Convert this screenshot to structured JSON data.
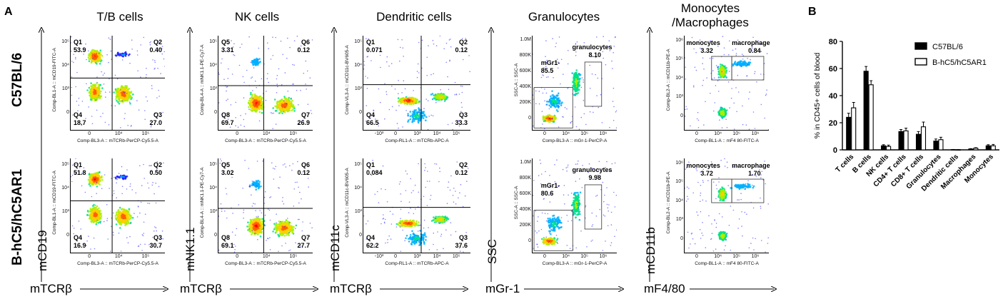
{
  "panel_letters": {
    "a": "A",
    "b": "B"
  },
  "column_titles": [
    "T/B cells",
    "NK cells",
    "Dendritic cells",
    "Granulocytes",
    "Monocytes\n/Macrophages"
  ],
  "row_labels": [
    "C57BL/6",
    "B-hC5/hC5AR1"
  ],
  "y_markers": [
    "mCD19",
    "mNK1.1",
    "mCD11c",
    "SSC",
    "mCD11b"
  ],
  "x_markers": [
    "mTCRβ",
    "mTCRβ",
    "mTCRβ",
    "mGr-1",
    "mF4/80"
  ],
  "axis_names": {
    "tb": {
      "x": "Comp-BL3-A :: mTCRb-PerCP-Cy5.5-A",
      "y": "Comp-BL1-A :: mCD19-FITC-A"
    },
    "nk": {
      "x": "Comp-BL3-A :: mTCRb-PerCP-Cy5.5-A",
      "y": "Comp-BL4-A :: mNK1.1-PE-Cy7-A"
    },
    "dc": {
      "x": "Comp-RL1-A :: mTCRb-APC-A",
      "y": "Comp-VL3-A :: mCD11c-BV605-A"
    },
    "gr": {
      "x": "Comp-BL3-A :: mGr-1-PerCP-A",
      "y": "SSC-A :: SSC-A"
    },
    "mo": {
      "x": "Comp-BL1-A :: mF4 80-FITC-A",
      "y": "Comp-BL2-A :: mCD11b-PE-A"
    }
  },
  "flow_panels": [
    {
      "id": "tb-c57",
      "quads": [
        {
          "label": "Q1",
          "value": "53.9"
        },
        {
          "label": "Q2",
          "value": "0.40"
        },
        {
          "label": "Q3",
          "value": "27.0"
        },
        {
          "label": "Q4",
          "value": "18.7"
        }
      ]
    },
    {
      "id": "nk-c57",
      "quads": [
        {
          "label": "Q5",
          "value": "3.31"
        },
        {
          "label": "Q6",
          "value": "0.12"
        },
        {
          "label": "Q7",
          "value": "26.9"
        },
        {
          "label": "Q8",
          "value": "69.7"
        }
      ]
    },
    {
      "id": "dc-c57",
      "quads": [
        {
          "label": "Q1",
          "value": "0.071"
        },
        {
          "label": "Q2",
          "value": "0.12"
        },
        {
          "label": "Q3",
          "value": "33.3"
        },
        {
          "label": "Q4",
          "value": "66.5"
        }
      ]
    },
    {
      "id": "gr-c57",
      "gates": [
        {
          "label": "mGr1-",
          "value": "85.5"
        },
        {
          "label": "granulocytes",
          "value": "8.10"
        }
      ]
    },
    {
      "id": "mo-c57",
      "gates": [
        {
          "label": "monocytes",
          "value": "3.32"
        },
        {
          "label": "macrophage",
          "value": "0.84"
        }
      ]
    },
    {
      "id": "tb-h",
      "quads": [
        {
          "label": "Q1",
          "value": "51.8"
        },
        {
          "label": "Q2",
          "value": "0.50"
        },
        {
          "label": "Q3",
          "value": "30.7"
        },
        {
          "label": "Q4",
          "value": "16.9"
        }
      ]
    },
    {
      "id": "nk-h",
      "quads": [
        {
          "label": "Q5",
          "value": "3.02"
        },
        {
          "label": "Q6",
          "value": "0.12"
        },
        {
          "label": "Q7",
          "value": "27.7"
        },
        {
          "label": "Q8",
          "value": "69.1"
        }
      ]
    },
    {
      "id": "dc-h",
      "quads": [
        {
          "label": "Q1",
          "value": "0.084"
        },
        {
          "label": "Q2",
          "value": "0.12"
        },
        {
          "label": "Q3",
          "value": "37.6"
        },
        {
          "label": "Q4",
          "value": "62.2"
        }
      ]
    },
    {
      "id": "gr-h",
      "gates": [
        {
          "label": "mGr1-",
          "value": "80.6"
        },
        {
          "label": "granulocytes",
          "value": "9.98"
        }
      ]
    },
    {
      "id": "mo-h",
      "gates": [
        {
          "label": "monocytes",
          "value": "3.72"
        },
        {
          "label": "macrophage",
          "value": "1.70"
        }
      ]
    }
  ],
  "ticks": {
    "log_y": [
      "10⁵",
      "10⁴",
      "10³",
      "0"
    ],
    "log_x": [
      "0",
      "10⁴",
      "10⁵"
    ],
    "dc_x": [
      "-10³",
      "0",
      "10³",
      "10⁴",
      "10⁵"
    ],
    "gr_y": [
      "1.0M",
      "800K",
      "600K",
      "400K",
      "200K",
      "0"
    ],
    "gr_x": [
      "0",
      "10⁴",
      "10⁵",
      "10⁶"
    ],
    "mo_y": [
      "10⁶",
      "10⁵",
      "10⁴",
      "10³",
      "0"
    ],
    "mo_x": [
      "0",
      "10⁴",
      "10⁵",
      "10⁶"
    ]
  },
  "chart_data": {
    "type": "bar",
    "title": "",
    "xlabel": "",
    "ylabel": "% in CD45+ cells of blood",
    "ylim": [
      0,
      80
    ],
    "yticks": [
      0,
      20,
      40,
      60,
      80
    ],
    "categories": [
      "T cells",
      "B cells",
      "NK cells",
      "CD4+ T cells",
      "CD8+ T cells",
      "Granulocytes",
      "Dendritic cells",
      "Macrophages",
      "Monocytes"
    ],
    "series": [
      {
        "name": "C57BL/6",
        "color": "#000000",
        "values": [
          24,
          58,
          3,
          13.5,
          11.5,
          6.5,
          0.2,
          0.6,
          3
        ],
        "errors": [
          3,
          3.5,
          0.8,
          1.5,
          2,
          1.5,
          0.1,
          0.3,
          0.8
        ]
      },
      {
        "name": "B-hC5/hC5AR1",
        "color": "#ffffff",
        "values": [
          31,
          48,
          2.5,
          14,
          17,
          7.5,
          0.1,
          1.2,
          3
        ],
        "errors": [
          4,
          3,
          1,
          2,
          3.5,
          1.8,
          0.1,
          0.4,
          1
        ]
      }
    ],
    "legend_position": "top-right"
  }
}
